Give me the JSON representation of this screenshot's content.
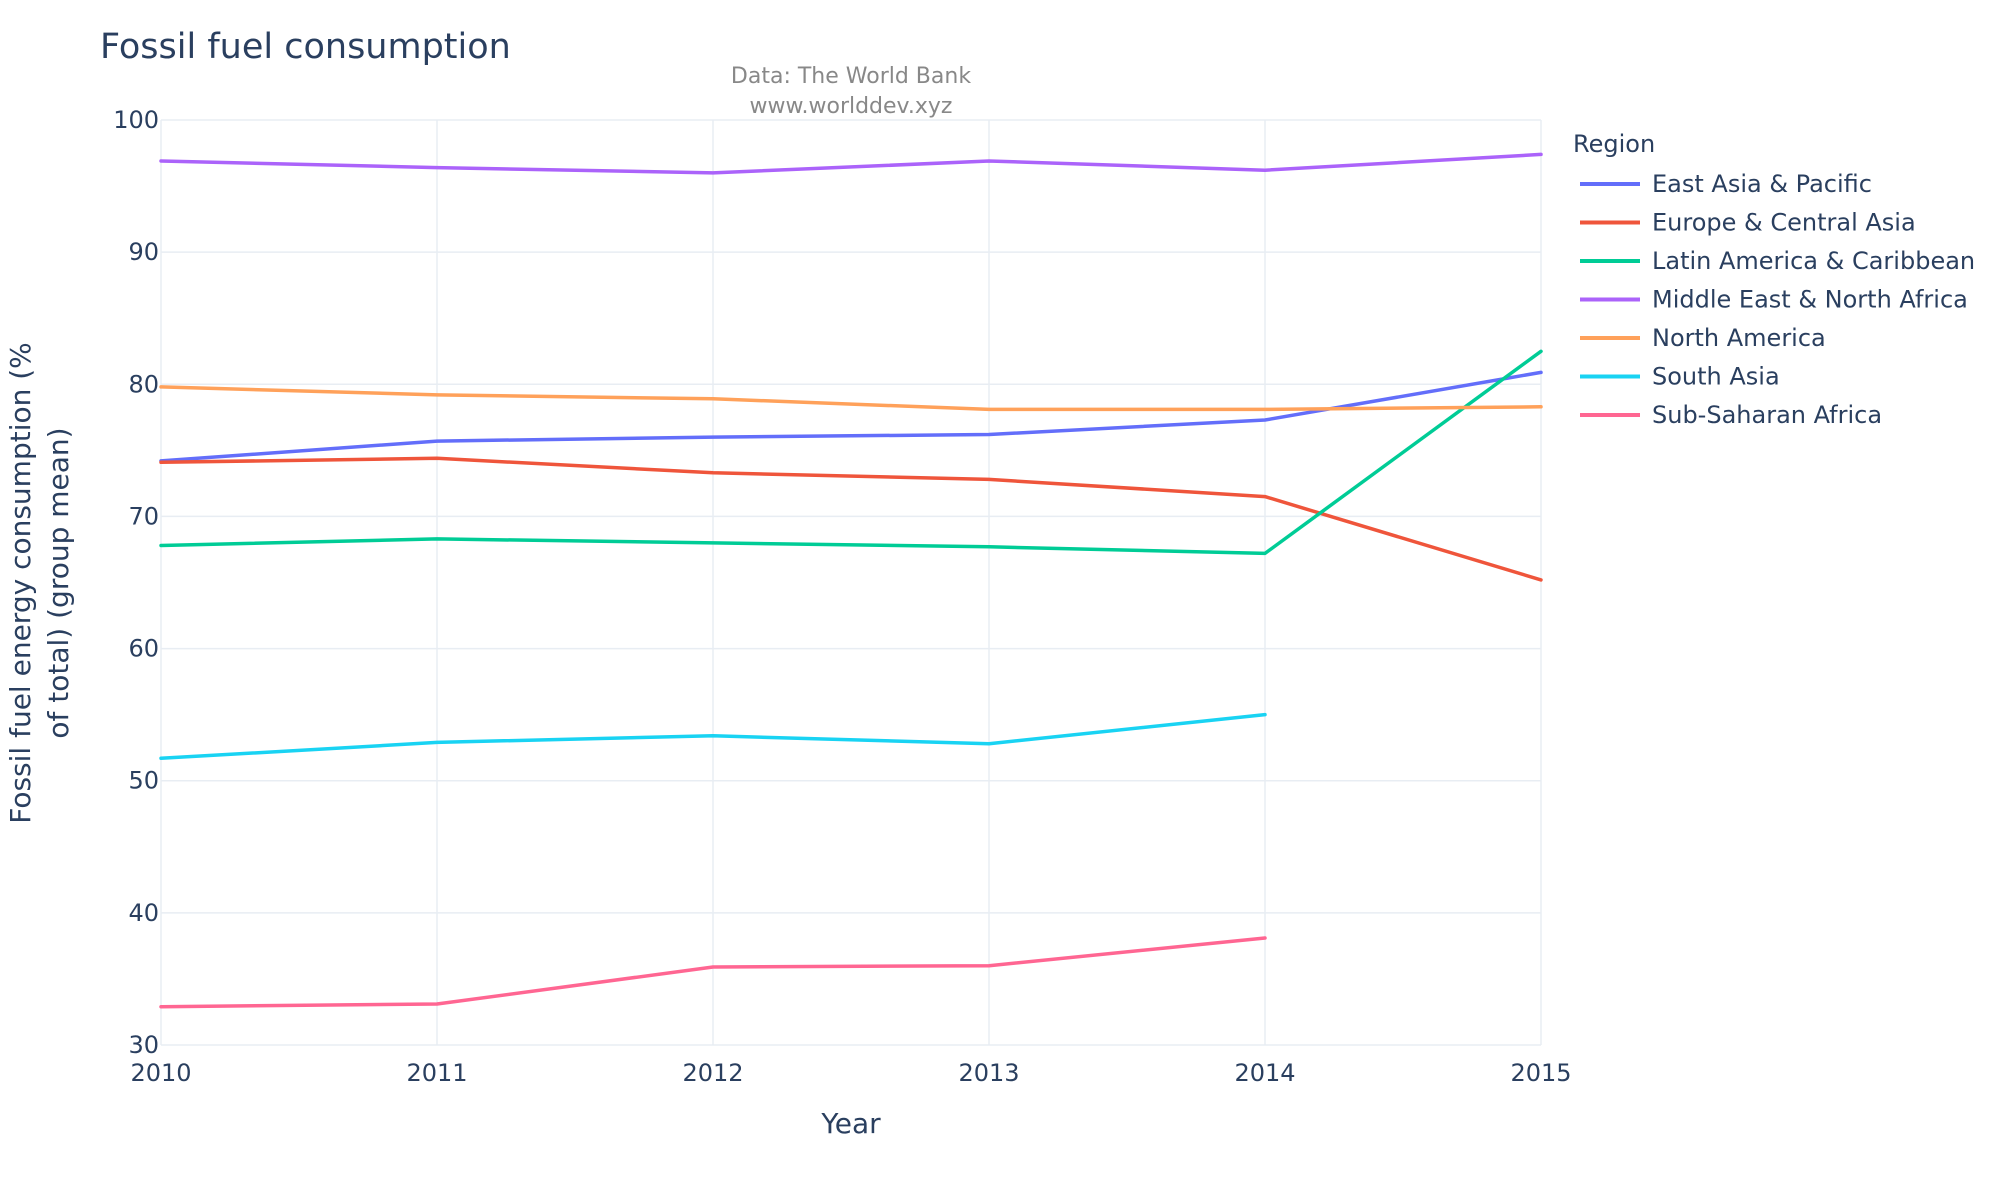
{
  "chart_data": {
    "type": "line",
    "title": "Fossil fuel consumption",
    "subtitle_lines": [
      "Data: The World Bank",
      "www.worlddev.xyz"
    ],
    "xlabel": "Year",
    "ylabel_lines": [
      "Fossil fuel energy consumption (%",
      "of total) (group mean)"
    ],
    "xlim": [
      2010,
      2015
    ],
    "ylim": [
      30,
      100
    ],
    "x_ticks": [
      2010,
      2011,
      2012,
      2013,
      2014,
      2015
    ],
    "y_ticks": [
      30,
      40,
      50,
      60,
      70,
      80,
      90,
      100
    ],
    "grid": true,
    "legend_title": "Region",
    "legend_position": "top-right, outside plot",
    "series": [
      {
        "name": "East Asia & Pacific",
        "color": "#636efa",
        "x": [
          2010,
          2011,
          2012,
          2013,
          2014,
          2015
        ],
        "values": [
          74.2,
          75.7,
          76.0,
          76.2,
          77.3,
          80.9
        ]
      },
      {
        "name": "Europe & Central Asia",
        "color": "#EF553B",
        "x": [
          2010,
          2011,
          2012,
          2013,
          2014,
          2015
        ],
        "values": [
          74.1,
          74.4,
          73.3,
          72.8,
          71.5,
          65.2
        ]
      },
      {
        "name": "Latin America & Caribbean",
        "color": "#00cc96",
        "x": [
          2010,
          2011,
          2012,
          2013,
          2014,
          2015
        ],
        "values": [
          67.8,
          68.3,
          68.0,
          67.7,
          67.2,
          82.5
        ]
      },
      {
        "name": "Middle East & North Africa",
        "color": "#ab63fa",
        "x": [
          2010,
          2011,
          2012,
          2013,
          2014,
          2015
        ],
        "values": [
          96.9,
          96.4,
          96.0,
          96.9,
          96.2,
          97.4
        ]
      },
      {
        "name": "North America",
        "color": "#FFA15A",
        "x": [
          2010,
          2011,
          2012,
          2013,
          2014,
          2015
        ],
        "values": [
          79.8,
          79.2,
          78.9,
          78.1,
          78.1,
          78.3
        ]
      },
      {
        "name": "South Asia",
        "color": "#19d3f3",
        "x": [
          2010,
          2011,
          2012,
          2013,
          2014
        ],
        "values": [
          51.7,
          52.9,
          53.4,
          52.8,
          55.0
        ]
      },
      {
        "name": "Sub-Saharan Africa",
        "color": "#FF6692",
        "x": [
          2010,
          2011,
          2012,
          2013,
          2014
        ],
        "values": [
          32.9,
          33.1,
          35.9,
          36.0,
          38.1
        ]
      }
    ]
  }
}
